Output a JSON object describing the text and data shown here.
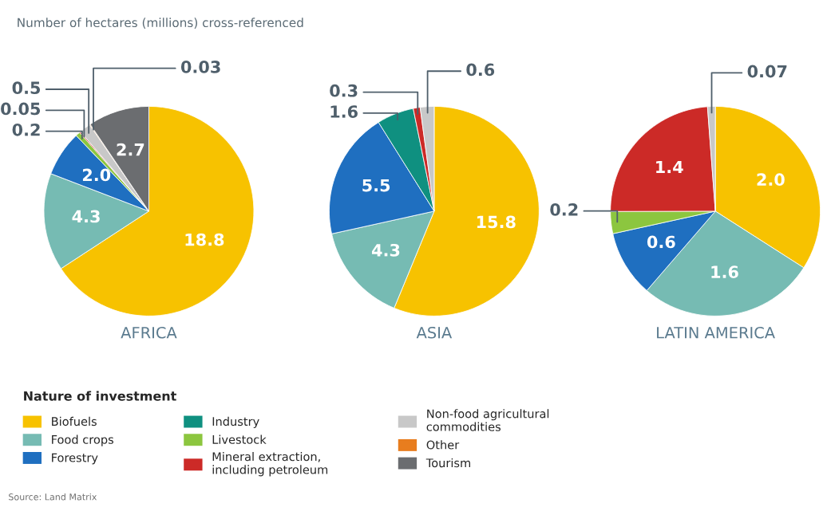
{
  "chart_data": [
    {
      "type": "pie",
      "title": "AFRICA",
      "subtitle": "Number of hectares (millions) cross-referenced",
      "legend_title": "Nature of investment",
      "legend": "bottom",
      "value_labels": [
        "18.8",
        "4.3",
        "2.0",
        null,
        "0.2",
        "0.05",
        "0.5",
        "0.03",
        "2.7"
      ],
      "annotations": [
        "Source: Land Matrix"
      ],
      "categories": [
        "Biofuels",
        "Food crops",
        "Forestry",
        "Industry",
        "Livestock",
        "Mineral extraction,\nincluding petroleum",
        "Non-food agricultural\ncommodities",
        "Other",
        "Tourism"
      ],
      "values": [
        18.8,
        4.3,
        2.0,
        null,
        0.2,
        0.05,
        0.5,
        0.03,
        2.7
      ],
      "colors": [
        "#f7c200",
        "#76bbb3",
        "#1f6fc0",
        "#0f9080",
        "#8cc63f",
        "#cc2a27",
        "#c8c8c8",
        "#e87d1e",
        "#6b6d70"
      ]
    },
    {
      "type": "pie",
      "title": "ASIA",
      "data_labels": true,
      "categories": [
        null,
        null,
        null,
        null,
        null,
        null
      ],
      "values": [
        15.8,
        4.3,
        5.5,
        1.6,
        0.3,
        0.6
      ],
      "colors": [
        "#f7c200",
        "#76bbb3",
        "#1f6fc0",
        "#0f9080",
        "#cc2a27",
        "#c8c8c8"
      ]
    },
    {
      "type": "pie",
      "title": "LATIN AMERICA",
      "value_labels": [
        "2.0",
        "1.6",
        "0.6",
        "0.2",
        "1.4",
        "0.07"
      ],
      "categories": [
        null,
        null,
        null,
        null,
        null,
        null
      ],
      "values": [
        2.0,
        1.6,
        0.6,
        0.2,
        1.4,
        0.07
      ],
      "colors": [
        "#f7c200",
        "#76bbb3",
        "#1f6fc0",
        "#8cc63f",
        "#cc2a27",
        "#c8c8c8"
      ]
    }
  ]
}
